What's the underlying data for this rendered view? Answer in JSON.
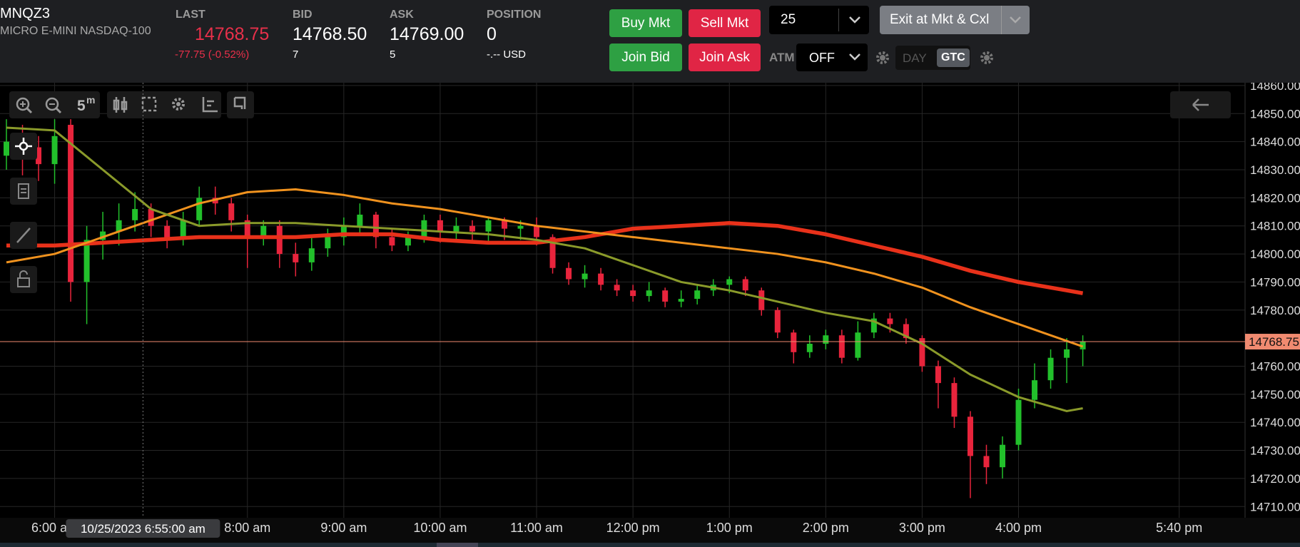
{
  "header": {
    "symbol": "MNQZ3",
    "description": "MICRO E-MINI NASDAQ-100",
    "last": {
      "label": "LAST",
      "value": "14768.75",
      "change": "-77.75 (-0.52%)"
    },
    "bid": {
      "label": "BID",
      "value": "14768.50",
      "size": "7"
    },
    "ask": {
      "label": "ASK",
      "value": "14769.00",
      "size": "5"
    },
    "position": {
      "label": "POSITION",
      "value": "0",
      "pnl": "-.-- USD"
    }
  },
  "order_panel": {
    "buy_market": "Buy Mkt",
    "sell_market": "Sell Mkt",
    "join_bid": "Join Bid",
    "join_ask": "Join Ask",
    "quantity": "25",
    "exit": "Exit at Mkt & Cxl",
    "atm_label": "ATM",
    "atm_value": "OFF",
    "day": "DAY",
    "gtc": "GTC"
  },
  "toolbar": {
    "interval_value": "5",
    "interval_unit": "m"
  },
  "chart_data": {
    "type": "candlestick",
    "up_color": "#22c02b",
    "down_color": "#e8243c",
    "x": [
      330,
      340,
      350,
      360,
      370,
      380,
      390,
      400,
      410,
      420,
      430,
      440,
      450,
      460,
      470,
      480,
      490,
      500,
      510,
      520,
      530,
      540,
      550,
      560,
      570,
      580,
      590,
      600,
      610,
      620,
      630,
      640,
      650,
      660,
      670,
      680,
      690,
      700,
      710,
      720,
      730,
      740,
      750,
      760,
      770,
      780,
      790,
      800,
      810,
      820,
      830,
      840,
      850,
      860,
      870,
      880,
      890,
      900,
      910,
      920,
      930,
      940,
      950,
      960,
      970,
      980,
      990,
      1000
    ],
    "candles": [
      [
        14835,
        14848,
        14830,
        14840
      ],
      [
        14840,
        14846,
        14828,
        14838
      ],
      [
        14838,
        14842,
        14826,
        14832
      ],
      [
        14832,
        14848,
        14825,
        14842
      ],
      [
        14846,
        14848,
        14783,
        14790
      ],
      [
        14790,
        14810,
        14775,
        14805
      ],
      [
        14805,
        14815,
        14798,
        14808
      ],
      [
        14808,
        14818,
        14803,
        14812
      ],
      [
        14812,
        14822,
        14808,
        14816
      ],
      [
        14816,
        14818,
        14806,
        14810
      ],
      [
        14810,
        14812,
        14802,
        14806
      ],
      [
        14806,
        14815,
        14803,
        14812
      ],
      [
        14812,
        14824,
        14810,
        14820
      ],
      [
        14820,
        14824,
        14814,
        14818
      ],
      [
        14818,
        14820,
        14808,
        14812
      ],
      [
        14812,
        14814,
        14795,
        14806
      ],
      [
        14806,
        14812,
        14803,
        14810
      ],
      [
        14810,
        14812,
        14795,
        14800
      ],
      [
        14800,
        14804,
        14792,
        14797
      ],
      [
        14797,
        14806,
        14794,
        14802
      ],
      [
        14802,
        14809,
        14799,
        14806
      ],
      [
        14806,
        14813,
        14803,
        14810
      ],
      [
        14810,
        14818,
        14807,
        14814
      ],
      [
        14814,
        14815,
        14802,
        14806
      ],
      [
        14806,
        14809,
        14801,
        14803
      ],
      [
        14803,
        14808,
        14801,
        14806
      ],
      [
        14806,
        14814,
        14804,
        14812
      ],
      [
        14812,
        14814,
        14804,
        14808
      ],
      [
        14808,
        14813,
        14805,
        14810
      ],
      [
        14810,
        14812,
        14804,
        14808
      ],
      [
        14808,
        14813,
        14804,
        14812
      ],
      [
        14812,
        14813,
        14805,
        14809
      ],
      [
        14809,
        14812,
        14805,
        14810
      ],
      [
        14810,
        14813,
        14803,
        14806
      ],
      [
        14806,
        14807,
        14793,
        14795
      ],
      [
        14795,
        14797,
        14789,
        14791
      ],
      [
        14791,
        14796,
        14788,
        14793
      ],
      [
        14793,
        14795,
        14787,
        14789
      ],
      [
        14789,
        14791,
        14785,
        14787
      ],
      [
        14787,
        14789,
        14783,
        14785
      ],
      [
        14785,
        14790,
        14783,
        14787
      ],
      [
        14787,
        14788,
        14781,
        14783
      ],
      [
        14783,
        14787,
        14781,
        14784
      ],
      [
        14784,
        14789,
        14782,
        14787
      ],
      [
        14787,
        14791,
        14785,
        14789
      ],
      [
        14789,
        14792,
        14786,
        14791
      ],
      [
        14791,
        14792,
        14785,
        14787
      ],
      [
        14787,
        14788,
        14778,
        14780
      ],
      [
        14780,
        14781,
        14770,
        14772
      ],
      [
        14772,
        14773,
        14761,
        14765
      ],
      [
        14765,
        14771,
        14763,
        14768
      ],
      [
        14768,
        14773,
        14766,
        14771
      ],
      [
        14771,
        14773,
        14761,
        14763
      ],
      [
        14763,
        14776,
        14762,
        14772
      ],
      [
        14772,
        14779,
        14770,
        14777
      ],
      [
        14777,
        14779,
        14772,
        14775
      ],
      [
        14775,
        14777,
        14768,
        14770
      ],
      [
        14770,
        14771,
        14758,
        14760
      ],
      [
        14760,
        14762,
        14745,
        14754
      ],
      [
        14754,
        14756,
        14738,
        14742
      ],
      [
        14742,
        14744,
        14713,
        14728
      ],
      [
        14728,
        14732,
        14718,
        14724
      ],
      [
        14724,
        14735,
        14720,
        14732
      ],
      [
        14732,
        14752,
        14730,
        14748
      ],
      [
        14748,
        14761,
        14745,
        14755
      ],
      [
        14755,
        14766,
        14752,
        14763
      ],
      [
        14763,
        14770,
        14754,
        14766
      ],
      [
        14766,
        14771,
        14760,
        14768.75
      ]
    ],
    "line_x": [
      330,
      360,
      390,
      420,
      450,
      480,
      510,
      540,
      570,
      600,
      630,
      660,
      690,
      720,
      750,
      780,
      810,
      840,
      870,
      900,
      930,
      960,
      990,
      1000
    ],
    "lines": [
      {
        "color": "#e8311a",
        "values": [
          14803,
          14803,
          14804,
          14805,
          14806,
          14806,
          14806,
          14807,
          14807,
          14805,
          14804,
          14804,
          14806,
          14809,
          14810,
          14811,
          14810,
          14807,
          14803,
          14799,
          14794,
          14790,
          14787,
          14786
        ]
      },
      {
        "color": "#f0921e",
        "values": [
          14797,
          14800,
          14806,
          14812,
          14818,
          14822,
          14823,
          14821,
          14818,
          14816,
          14813,
          14810,
          14808,
          14806,
          14804,
          14802,
          14800,
          14797,
          14793,
          14788,
          14781,
          14775,
          14769,
          14767
        ]
      },
      {
        "color": "#8a9a2a",
        "values": [
          14845,
          14844,
          14830,
          14816,
          14810,
          14811,
          14811,
          14810,
          14809,
          14808,
          14807,
          14805,
          14802,
          14796,
          14790,
          14787,
          14783,
          14779,
          14776,
          14768,
          14757,
          14749,
          14744,
          14745
        ]
      }
    ],
    "xlim": [
      326,
      1101
    ],
    "xticks": [
      {
        "value": 360,
        "label": "6:00 am"
      },
      {
        "value": 480,
        "label": "8:00 am"
      },
      {
        "value": 540,
        "label": "9:00 am"
      },
      {
        "value": 600,
        "label": "10:00 am"
      },
      {
        "value": 660,
        "label": "11:00 am"
      },
      {
        "value": 720,
        "label": "12:00 pm"
      },
      {
        "value": 780,
        "label": "1:00 pm"
      },
      {
        "value": 840,
        "label": "2:00 pm"
      },
      {
        "value": 900,
        "label": "3:00 pm"
      },
      {
        "value": 960,
        "label": "4:00 pm"
      },
      {
        "value": 1060,
        "label": "5:40 pm"
      }
    ],
    "ylim": [
      14706,
      14861
    ],
    "yticks": [
      {
        "value": 14710,
        "label": "14710.00"
      },
      {
        "value": 14720,
        "label": "14720.00"
      },
      {
        "value": 14730,
        "label": "14730.00"
      },
      {
        "value": 14740,
        "label": "14740.00"
      },
      {
        "value": 14750,
        "label": "14750.00"
      },
      {
        "value": 14760,
        "label": "14760.00"
      },
      {
        "value": 14780,
        "label": "14780.00"
      },
      {
        "value": 14790,
        "label": "14790.00"
      },
      {
        "value": 14800,
        "label": "14800.00"
      },
      {
        "value": 14810,
        "label": "14810.00"
      },
      {
        "value": 14820,
        "label": "14820.00"
      },
      {
        "value": 14830,
        "label": "14830.00"
      },
      {
        "value": 14840,
        "label": "14840.00"
      },
      {
        "value": 14850,
        "label": "14850.00"
      },
      {
        "value": 14860,
        "label": "14860.00"
      }
    ],
    "grid": true,
    "last_price": 14768.75,
    "last_price_color": "#f08a70",
    "crosshair_x": 415,
    "crosshair_label": "10/25/2023 6:55:00 am"
  }
}
